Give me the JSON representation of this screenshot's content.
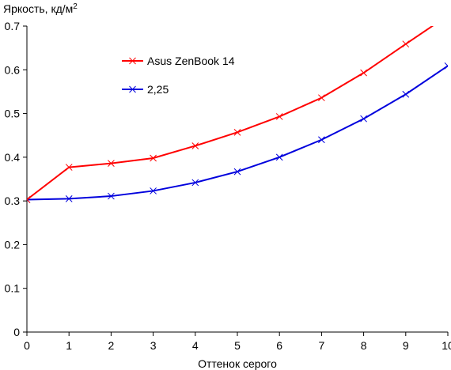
{
  "chart_data": {
    "type": "line",
    "ylabel": "Яркость, кд/м",
    "ylabel_superscript": "2",
    "xlabel": "Оттенок серого",
    "xlim": [
      0,
      10
    ],
    "ylim": [
      0,
      0.7
    ],
    "x_ticks": [
      "0",
      "1",
      "2",
      "3",
      "4",
      "5",
      "6",
      "7",
      "8",
      "9",
      "10"
    ],
    "y_ticks": [
      "0",
      "0.1",
      "0.2",
      "0.3",
      "0.4",
      "0.5",
      "0.6",
      "0.7"
    ],
    "grid": false,
    "legend_position": "top-left",
    "x": [
      0,
      1,
      2,
      3,
      4,
      5,
      6,
      7,
      8,
      9,
      10
    ],
    "series": [
      {
        "name": "Asus ZenBook 14",
        "color": "#ff0000",
        "marker": "x",
        "values": [
          0.303,
          0.377,
          0.386,
          0.398,
          0.426,
          0.457,
          0.493,
          0.536,
          0.593,
          0.659,
          0.724
        ]
      },
      {
        "name": "2,25",
        "color": "#0000dd",
        "marker": "x",
        "values": [
          0.303,
          0.305,
          0.311,
          0.323,
          0.342,
          0.367,
          0.4,
          0.44,
          0.488,
          0.544,
          0.609
        ]
      }
    ]
  }
}
